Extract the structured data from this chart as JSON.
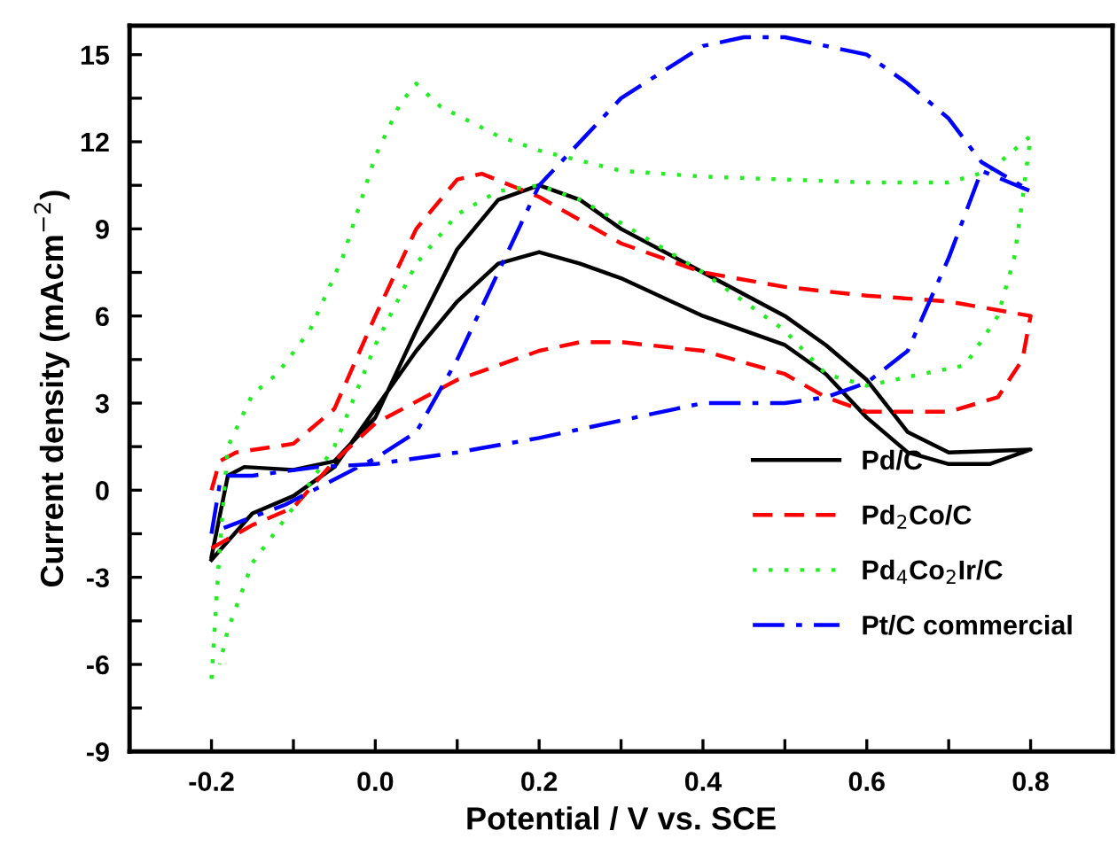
{
  "chart_data": {
    "type": "line",
    "xlabel": "Potential / V vs. SCE",
    "ylabel": "Current density (mAcm$^{−2}$)",
    "xlim": [
      -0.3,
      0.9
    ],
    "ylim": [
      -9,
      16
    ],
    "xticks": [
      -0.2,
      {
        "value": -0.1,
        "label": null
      },
      "0.0",
      {
        "value": 0.1,
        "label": null
      },
      0.2,
      {
        "value": 0.3,
        "label": null
      },
      0.4,
      {
        "value": 0.5,
        "label": null
      },
      0.6,
      {
        "value": 0.7,
        "label": null
      },
      0.8
    ],
    "yticks": [
      -9,
      {
        "value": -7.5,
        "label": null
      },
      -6,
      {
        "value": -4.5,
        "label": null
      },
      -3,
      {
        "value": -1.5,
        "label": null
      },
      0,
      {
        "value": 1.5,
        "label": null
      },
      3,
      {
        "value": 4.5,
        "label": null
      },
      6,
      {
        "value": 7.5,
        "label": null
      },
      9,
      {
        "value": 10.5,
        "label": null
      },
      12,
      {
        "value": 13.5,
        "label": null
      },
      15
    ],
    "grid": false,
    "legend": "bottom right",
    "marker": "none",
    "series": [
      {
        "name": "Pd/C",
        "color": "#000000",
        "line_style": "solid",
        "x": [
          -0.2,
          -0.18,
          -0.16,
          -0.1,
          -0.05,
          0.0,
          0.05,
          0.1,
          0.15,
          0.2,
          0.25,
          0.3,
          0.4,
          0.5,
          0.55,
          0.6,
          0.65,
          0.7,
          0.8,
          0.75,
          0.7,
          0.65,
          0.6,
          0.55,
          0.5,
          0.4,
          0.3,
          0.25,
          0.2,
          0.15,
          0.1,
          0.05,
          0.0,
          -0.05,
          -0.1,
          -0.15,
          -0.2
        ],
        "values": [
          -2.3,
          0.5,
          0.8,
          0.7,
          1.0,
          2.5,
          5.5,
          8.3,
          10.0,
          10.5,
          10.0,
          9.0,
          7.5,
          6.0,
          5.0,
          3.8,
          2.0,
          1.3,
          1.4,
          0.9,
          0.9,
          1.3,
          2.5,
          4.0,
          5.0,
          6.0,
          7.3,
          7.8,
          8.2,
          7.8,
          6.5,
          4.8,
          2.8,
          0.8,
          -0.2,
          -0.8,
          -2.4
        ]
      },
      {
        "name": "Pd$_{2}$Co/C",
        "color": "#ff0000",
        "line_style": "dashed",
        "x": [
          -0.2,
          -0.19,
          -0.17,
          -0.1,
          -0.05,
          0.0,
          0.05,
          0.1,
          0.13,
          0.2,
          0.3,
          0.4,
          0.5,
          0.6,
          0.7,
          0.8,
          0.79,
          0.76,
          0.7,
          0.6,
          0.55,
          0.5,
          0.4,
          0.3,
          0.25,
          0.2,
          0.1,
          0.0,
          -0.05,
          -0.1,
          -0.15,
          -0.2
        ],
        "values": [
          0.0,
          1.0,
          1.3,
          1.6,
          2.8,
          6.0,
          9.0,
          10.7,
          10.9,
          10.1,
          8.5,
          7.5,
          7.0,
          6.7,
          6.5,
          6.0,
          4.5,
          3.2,
          2.7,
          2.7,
          3.2,
          4.0,
          4.8,
          5.1,
          5.1,
          4.8,
          3.8,
          2.3,
          1.0,
          -0.6,
          -1.2,
          -2.0
        ]
      },
      {
        "name": "Pd$_{4}$Co$_{2}$Ir/C",
        "color": "#22ee22",
        "line_style": "dotted",
        "x": [
          -0.2,
          -0.19,
          -0.18,
          -0.15,
          -0.12,
          -0.08,
          -0.04,
          0.0,
          0.03,
          0.05,
          0.08,
          0.15,
          0.2,
          0.3,
          0.4,
          0.5,
          0.6,
          0.7,
          0.75,
          0.8,
          0.79,
          0.78,
          0.76,
          0.72,
          0.65,
          0.6,
          0.55,
          0.5,
          0.4,
          0.3,
          0.25,
          0.2,
          0.15,
          0.1,
          0.05,
          0.0,
          -0.05,
          -0.1,
          -0.15,
          -0.18,
          -0.19
        ],
        "values": [
          -6.5,
          -2.0,
          1.5,
          3.3,
          4.0,
          5.5,
          8.0,
          11.5,
          13.3,
          14.0,
          13.2,
          12.2,
          11.7,
          11.0,
          10.8,
          10.7,
          10.6,
          10.6,
          11.0,
          12.2,
          10.0,
          8.0,
          6.0,
          4.3,
          3.9,
          3.6,
          4.0,
          5.5,
          7.5,
          9.2,
          10.0,
          10.5,
          10.3,
          9.5,
          7.8,
          5.0,
          1.5,
          -0.6,
          -2.5,
          -4.8,
          -6.0
        ]
      },
      {
        "name": "Pt/C commercial",
        "color": "#0000ff",
        "line_style": "dashdot",
        "x": [
          -0.2,
          -0.19,
          -0.18,
          -0.15,
          -0.07,
          0.0,
          0.1,
          0.2,
          0.3,
          0.4,
          0.5,
          0.55,
          0.6,
          0.65,
          0.7,
          0.74,
          0.8,
          0.74,
          0.7,
          0.65,
          0.6,
          0.5,
          0.45,
          0.4,
          0.3,
          0.2,
          0.15,
          0.1,
          0.05,
          0.0,
          -0.11,
          -0.185
        ],
        "values": [
          -1.5,
          0.2,
          0.5,
          0.5,
          0.8,
          0.9,
          1.3,
          1.8,
          2.4,
          3.0,
          3.0,
          3.2,
          3.7,
          4.8,
          8.0,
          11.0,
          10.3,
          11.3,
          12.8,
          14.0,
          15.0,
          15.6,
          15.6,
          15.3,
          13.5,
          10.5,
          7.5,
          4.5,
          2.0,
          1.1,
          -0.5,
          -1.3
        ]
      }
    ]
  }
}
